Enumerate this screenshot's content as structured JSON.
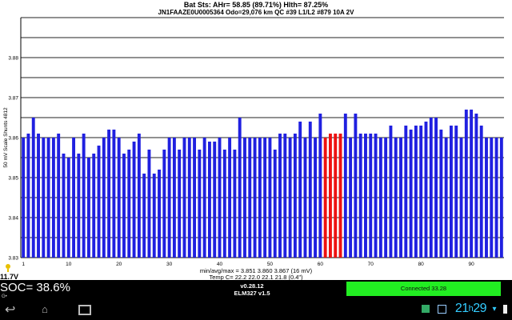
{
  "header": {
    "line1": "Bat Sts:  AHr= 58.85 (89.71%) Hlth= 87.25%",
    "line2": "JN1FAAZE0U0005364 Odo=29,076 km  QC #39  L1/L2 #879 10A 2V"
  },
  "chart_data": {
    "type": "bar",
    "title": "",
    "xlabel": "",
    "ylabel": "50 mV Scale  Shunts 4812",
    "ylim": [
      3.83,
      3.89
    ],
    "y_ticks": [
      "3.83",
      "3.84",
      "3.85",
      "3.86",
      "3.87",
      "3.88"
    ],
    "y_ticks_values": [
      3.83,
      3.84,
      3.85,
      3.86,
      3.87,
      3.88
    ],
    "x_ticks": [
      1,
      10,
      20,
      30,
      40,
      50,
      60,
      70,
      80,
      90
    ],
    "grid": true,
    "bar_color": "#2020e0",
    "shunt_color": "#ee1111",
    "shunt_cells": [
      61,
      62,
      63,
      64
    ],
    "x": [
      1,
      2,
      3,
      4,
      5,
      6,
      7,
      8,
      9,
      10,
      11,
      12,
      13,
      14,
      15,
      16,
      17,
      18,
      19,
      20,
      21,
      22,
      23,
      24,
      25,
      26,
      27,
      28,
      29,
      30,
      31,
      32,
      33,
      34,
      35,
      36,
      37,
      38,
      39,
      40,
      41,
      42,
      43,
      44,
      45,
      46,
      47,
      48,
      49,
      50,
      51,
      52,
      53,
      54,
      55,
      56,
      57,
      58,
      59,
      60,
      61,
      62,
      63,
      64,
      65,
      66,
      67,
      68,
      69,
      70,
      71,
      72,
      73,
      74,
      75,
      76,
      77,
      78,
      79,
      80,
      81,
      82,
      83,
      84,
      85,
      86,
      87,
      88,
      89,
      90,
      91,
      92,
      93,
      94,
      95,
      96
    ],
    "values": [
      3.86,
      3.861,
      3.865,
      3.861,
      3.86,
      3.86,
      3.86,
      3.861,
      3.856,
      3.855,
      3.86,
      3.856,
      3.861,
      3.855,
      3.856,
      3.858,
      3.86,
      3.862,
      3.862,
      3.86,
      3.856,
      3.857,
      3.859,
      3.861,
      3.851,
      3.857,
      3.851,
      3.852,
      3.857,
      3.86,
      3.86,
      3.857,
      3.86,
      3.86,
      3.86,
      3.857,
      3.86,
      3.859,
      3.859,
      3.86,
      3.857,
      3.86,
      3.857,
      3.865,
      3.86,
      3.86,
      3.86,
      3.86,
      3.86,
      3.86,
      3.857,
      3.861,
      3.861,
      3.86,
      3.861,
      3.864,
      3.86,
      3.864,
      3.86,
      3.866,
      3.86,
      3.861,
      3.861,
      3.861,
      3.866,
      3.86,
      3.866,
      3.861,
      3.861,
      3.861,
      3.861,
      3.86,
      3.86,
      3.863,
      3.86,
      3.86,
      3.863,
      3.862,
      3.863,
      3.863,
      3.864,
      3.865,
      3.865,
      3.862,
      3.86,
      3.863,
      3.863,
      3.86,
      3.867,
      3.867,
      3.866,
      3.863,
      3.86,
      3.86,
      3.86,
      3.86
    ]
  },
  "stats": {
    "minavgmax": "min/avg/max = 3.851 3.860 3.867 (16 mV)",
    "temp": "Temp C= 22.2  22.0  22.1  21.8  (0.4\")"
  },
  "status": {
    "soc": "SOC= 38.6%",
    "voltage": "11.7V",
    "version": "v0.28.12",
    "adapter": "ELM327 v1.5",
    "connection": "Connected 33.28",
    "connection_color": "#22ee22"
  },
  "system_bar": {
    "clock_hour": "21",
    "clock_sep": "h",
    "clock_min": "29",
    "back_icon": "back-arrow-icon",
    "home_icon": "home-icon",
    "recents_icon": "recents-icon"
  }
}
